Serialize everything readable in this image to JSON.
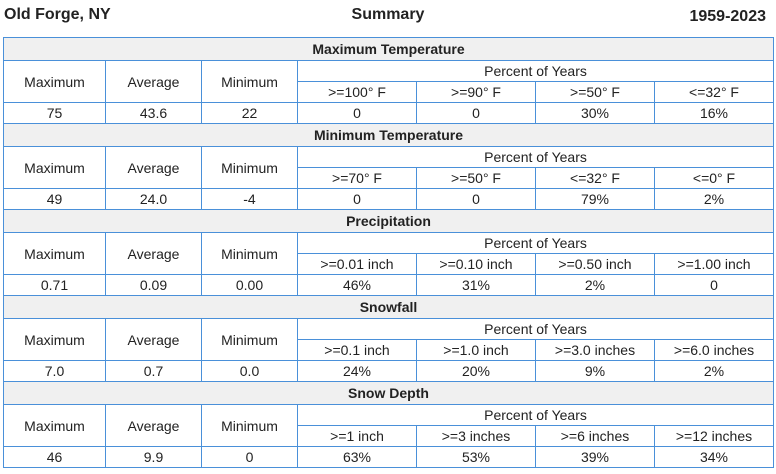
{
  "header": {
    "location": "Old Forge, NY",
    "title": "Summary",
    "years": "1959-2023"
  },
  "stat_labels": {
    "max": "Maximum",
    "avg": "Average",
    "min": "Minimum",
    "percent": "Percent of Years"
  },
  "sections": [
    {
      "title": "Maximum Temperature",
      "thresholds": [
        ">=100° F",
        ">=90° F",
        ">=50° F",
        "<=32° F"
      ],
      "values": {
        "max": "75",
        "avg": "43.6",
        "min": "22",
        "pct": [
          "0",
          "0",
          "30%",
          "16%"
        ]
      }
    },
    {
      "title": "Minimum Temperature",
      "thresholds": [
        ">=70° F",
        ">=50° F",
        "<=32° F",
        "<=0° F"
      ],
      "values": {
        "max": "49",
        "avg": "24.0",
        "min": "-4",
        "pct": [
          "0",
          "0",
          "79%",
          "2%"
        ]
      }
    },
    {
      "title": "Precipitation",
      "thresholds": [
        ">=0.01 inch",
        ">=0.10 inch",
        ">=0.50 inch",
        ">=1.00 inch"
      ],
      "values": {
        "max": "0.71",
        "avg": "0.09",
        "min": "0.00",
        "pct": [
          "46%",
          "31%",
          "2%",
          "0"
        ]
      }
    },
    {
      "title": "Snowfall",
      "thresholds": [
        ">=0.1 inch",
        ">=1.0 inch",
        ">=3.0 inches",
        ">=6.0 inches"
      ],
      "values": {
        "max": "7.0",
        "avg": "0.7",
        "min": "0.0",
        "pct": [
          "24%",
          "20%",
          "9%",
          "2%"
        ]
      }
    },
    {
      "title": "Snow Depth",
      "thresholds": [
        ">=1 inch",
        ">=3 inches",
        ">=6 inches",
        ">=12 inches"
      ],
      "values": {
        "max": "46",
        "avg": "9.9",
        "min": "0",
        "pct": [
          "63%",
          "53%",
          "39%",
          "34%"
        ]
      }
    }
  ]
}
